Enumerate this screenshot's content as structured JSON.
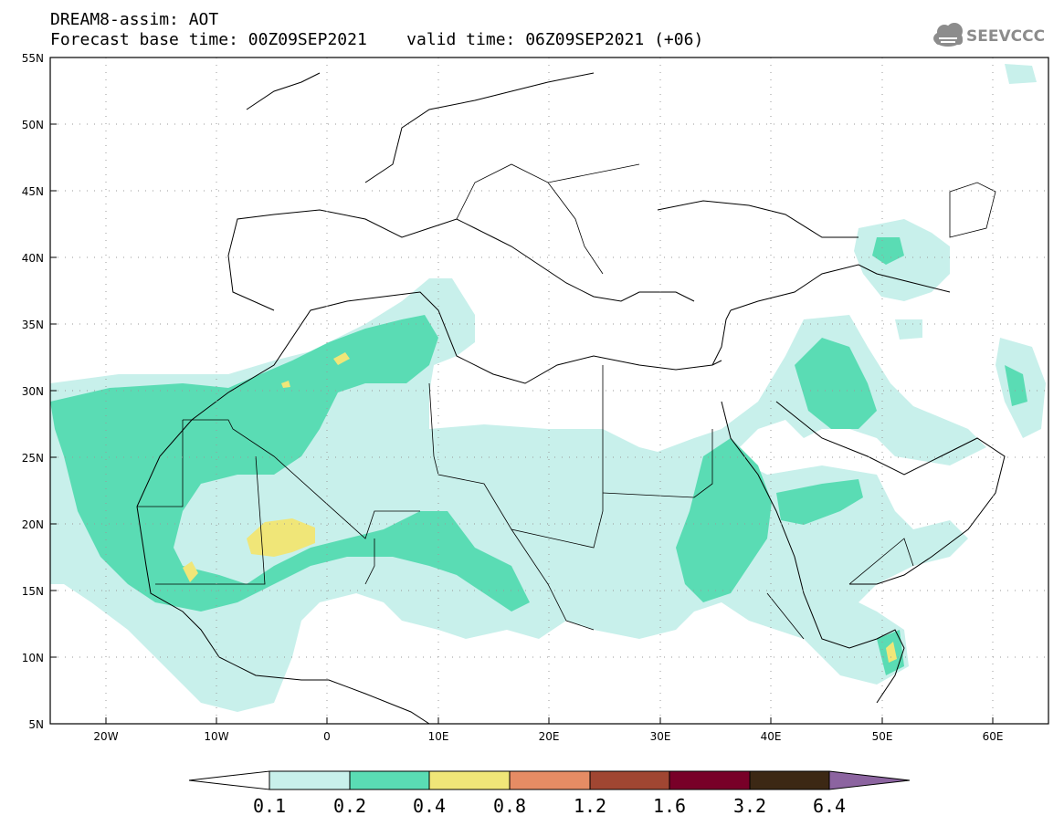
{
  "header": {
    "title": "DREAM8-assim: AOT",
    "base_label": "Forecast base time:",
    "base_value": "00Z09SEP2021",
    "valid_label": "valid time:",
    "valid_value": "06Z09SEP2021 (+06)"
  },
  "logo": {
    "text": "SEEVCCC",
    "icon": "cloud-icon",
    "color": "#8c8c8c"
  },
  "map": {
    "projection": "equirectangular",
    "lon_range": [
      -25,
      65
    ],
    "lat_range": [
      5,
      55
    ],
    "grid_lines": "dotted",
    "lat_ticks": [
      "55N",
      "50N",
      "45N",
      "40N",
      "35N",
      "30N",
      "25N",
      "20N",
      "15N",
      "10N",
      "5N"
    ],
    "lon_ticks": [
      "20W",
      "10W",
      "0",
      "10E",
      "20E",
      "30E",
      "40E",
      "50E",
      "60E"
    ]
  },
  "colorbar": {
    "labels": [
      "0.1",
      "0.2",
      "0.4",
      "0.8",
      "1.2",
      "1.6",
      "3.2",
      "6.4"
    ],
    "colors": [
      "#ffffff",
      "#c8f0eb",
      "#5adcb4",
      "#f0e678",
      "#e68c64",
      "#a04632",
      "#780028",
      "#3c2814",
      "#8c64a0"
    ]
  }
}
